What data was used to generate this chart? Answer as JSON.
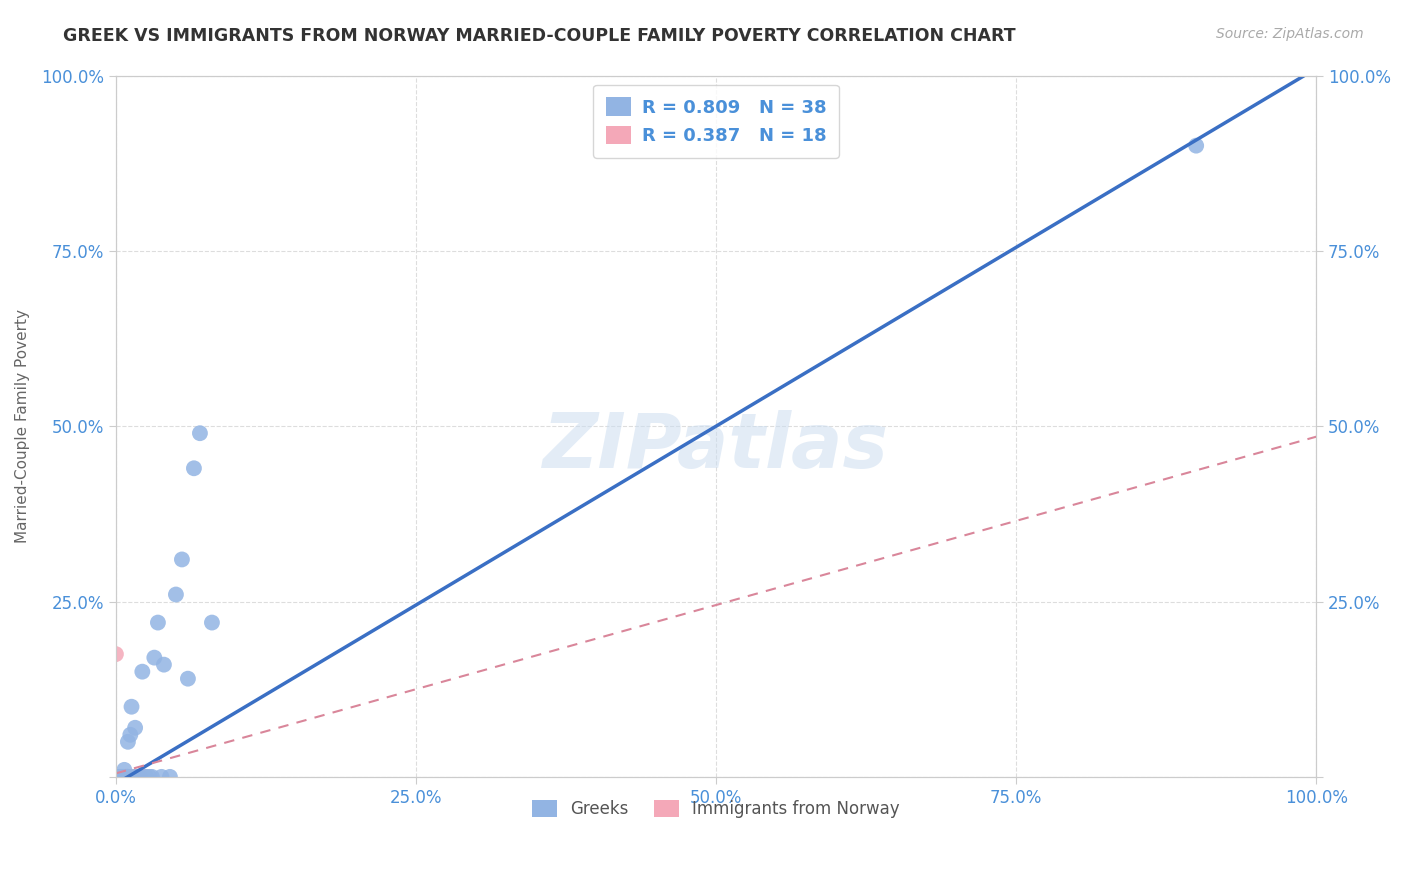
{
  "title": "GREEK VS IMMIGRANTS FROM NORWAY MARRIED-COUPLE FAMILY POVERTY CORRELATION CHART",
  "source": "Source: ZipAtlas.com",
  "ylabel": "Married-Couple Family Poverty",
  "watermark": "ZIPatlas",
  "xlim": [
    0.0,
    1.0
  ],
  "ylim": [
    0.0,
    1.0
  ],
  "xticks": [
    0.0,
    0.25,
    0.5,
    0.75,
    1.0
  ],
  "yticks": [
    0.0,
    0.25,
    0.5,
    0.75,
    1.0
  ],
  "xticklabels": [
    "0.0%",
    "25.0%",
    "50.0%",
    "75.0%",
    "100.0%"
  ],
  "yticklabels": [
    "",
    "25.0%",
    "50.0%",
    "75.0%",
    "100.0%"
  ],
  "greek_color": "#92b4e3",
  "norway_color": "#f4a8b8",
  "greek_line_color": "#3a6fc4",
  "norway_line_color": "#d9869a",
  "R_greek": 0.809,
  "N_greek": 38,
  "R_norway": 0.387,
  "N_norway": 18,
  "legend_label_greek": "Greeks",
  "legend_label_norway": "Immigrants from Norway",
  "greek_x": [
    0.0,
    0.0,
    0.0,
    0.0,
    0.0,
    0.002,
    0.003,
    0.004,
    0.004,
    0.005,
    0.006,
    0.007,
    0.008,
    0.009,
    0.01,
    0.01,
    0.012,
    0.013,
    0.015,
    0.016,
    0.018,
    0.02,
    0.022,
    0.025,
    0.028,
    0.03,
    0.032,
    0.035,
    0.038,
    0.04,
    0.045,
    0.05,
    0.055,
    0.06,
    0.065,
    0.07,
    0.08,
    0.9
  ],
  "greek_y": [
    0.0,
    0.0,
    0.0,
    0.0,
    0.0,
    0.0,
    0.0,
    0.0,
    0.0,
    0.0,
    0.0,
    0.01,
    0.0,
    0.0,
    0.0,
    0.05,
    0.06,
    0.1,
    0.0,
    0.07,
    0.0,
    0.0,
    0.15,
    0.0,
    0.0,
    0.0,
    0.17,
    0.22,
    0.0,
    0.16,
    0.0,
    0.26,
    0.31,
    0.14,
    0.44,
    0.49,
    0.22,
    0.9
  ],
  "norway_x": [
    0.0,
    0.0,
    0.0,
    0.0,
    0.0,
    0.0,
    0.0,
    0.0,
    0.003,
    0.005,
    0.007,
    0.008,
    0.009,
    0.01,
    0.012,
    0.015,
    0.02,
    0.025
  ],
  "norway_y": [
    0.0,
    0.0,
    0.0,
    0.0,
    0.0,
    0.0,
    0.0,
    0.175,
    0.0,
    0.0,
    0.0,
    0.0,
    0.0,
    0.0,
    0.0,
    0.0,
    0.0,
    0.0
  ],
  "greek_slope": 1.02,
  "greek_intercept": -0.01,
  "norway_slope": 0.48,
  "norway_intercept": 0.005,
  "background_color": "#ffffff",
  "grid_color": "#dddddd",
  "axis_color": "#cccccc",
  "title_color": "#333333",
  "tick_color": "#4a90d9"
}
